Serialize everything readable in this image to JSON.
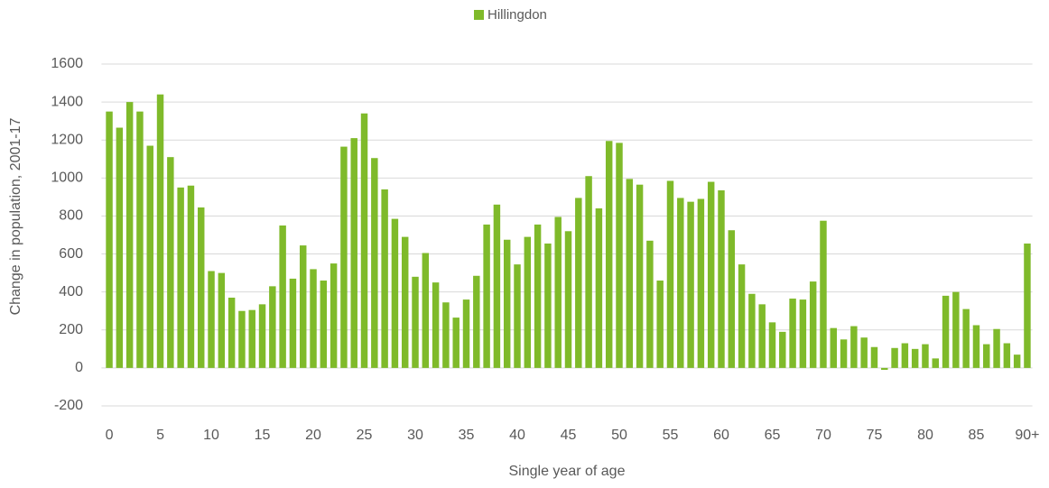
{
  "chart_data": {
    "type": "bar",
    "x_label": "Single year of age",
    "y_label": "Change in population, 2001-17",
    "categories": [
      "0",
      null,
      null,
      null,
      null,
      "5",
      null,
      null,
      null,
      null,
      "10",
      null,
      null,
      null,
      null,
      "15",
      null,
      null,
      null,
      null,
      "20",
      null,
      null,
      null,
      null,
      "25",
      null,
      null,
      null,
      null,
      "30",
      null,
      null,
      null,
      null,
      "35",
      null,
      null,
      null,
      null,
      "40",
      null,
      null,
      null,
      null,
      "45",
      null,
      null,
      null,
      null,
      "50",
      null,
      null,
      null,
      null,
      "55",
      null,
      null,
      null,
      null,
      "60",
      null,
      null,
      null,
      null,
      "65",
      null,
      null,
      null,
      null,
      "70",
      null,
      null,
      null,
      null,
      "75",
      null,
      null,
      null,
      null,
      "80",
      null,
      null,
      null,
      null,
      "85",
      null,
      null,
      null,
      null,
      "90+"
    ],
    "series": [
      {
        "name": "Hillingdon",
        "color": "#7fba2a",
        "values": [
          1350,
          1265,
          1400,
          1350,
          1170,
          1440,
          1110,
          950,
          960,
          845,
          510,
          500,
          370,
          300,
          305,
          335,
          430,
          750,
          470,
          645,
          520,
          460,
          550,
          1165,
          1210,
          1340,
          1105,
          940,
          785,
          690,
          480,
          605,
          450,
          345,
          265,
          360,
          485,
          755,
          860,
          675,
          545,
          690,
          755,
          655,
          795,
          720,
          895,
          1010,
          840,
          1195,
          1185,
          995,
          965,
          670,
          460,
          985,
          895,
          875,
          890,
          980,
          935,
          725,
          545,
          390,
          335,
          240,
          190,
          365,
          360,
          455,
          775,
          210,
          150,
          220,
          160,
          110,
          -10,
          105,
          130,
          100,
          125,
          50,
          380,
          400,
          310,
          225,
          125,
          205,
          130,
          70,
          655
        ]
      }
    ],
    "ylim": [
      -200,
      1600
    ],
    "yticks": [
      -200,
      0,
      200,
      400,
      600,
      800,
      1000,
      1200,
      1400,
      1600
    ],
    "grid": true,
    "legend": "top"
  }
}
